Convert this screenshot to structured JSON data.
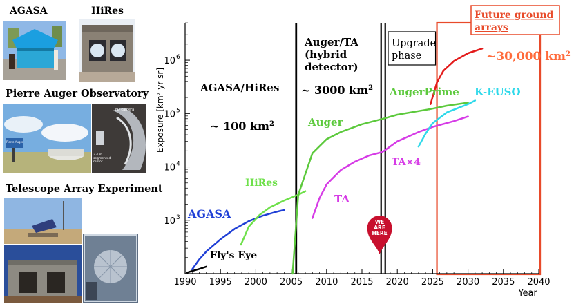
{
  "photos": {
    "agasa_title": "AGASA",
    "hires_title": "HiRes",
    "auger_title": "Pierre Auger Observatory",
    "ta_title": "Telescope Array Experiment",
    "auger_sign_text": "Pierre Auger",
    "auger_camera_text": "FD camera",
    "auger_mirror_text": "3.4 m segmented mirror"
  },
  "chart_data": {
    "type": "line",
    "xlabel": "Year",
    "ylabel": "Exposure [km² yr sr]",
    "xlim": [
      1990,
      2040
    ],
    "ylim_log10": [
      2.0,
      6.7
    ],
    "yscale": "log",
    "x_ticks": [
      1990,
      1995,
      2000,
      2005,
      2010,
      2015,
      2020,
      2025,
      2030,
      2035,
      2040
    ],
    "y_ticks": [
      {
        "value": 1000,
        "label": "10",
        "exp": "3"
      },
      {
        "value": 10000,
        "label": "10",
        "exp": "4"
      },
      {
        "value": 100000,
        "label": "10",
        "exp": "5"
      },
      {
        "value": 1000000,
        "label": "10",
        "exp": "6"
      }
    ],
    "series": [
      {
        "name": "Fly's Eye",
        "color": "#000000",
        "x": [
          1990.3,
          1991,
          1992,
          1993
        ],
        "y": [
          105,
          112,
          122,
          135
        ]
      },
      {
        "name": "AGASA",
        "color": "#1f3fd6",
        "x": [
          1991,
          1992,
          1993,
          1995,
          1997,
          1999,
          2001,
          2003,
          2004
        ],
        "y": [
          120,
          185,
          260,
          440,
          690,
          960,
          1220,
          1450,
          1560
        ]
      },
      {
        "name": "HiRes",
        "color": "#6ee04a",
        "x": [
          1997.9,
          1999,
          2000.5,
          2002,
          2004,
          2006,
          2007
        ],
        "y": [
          350,
          760,
          1250,
          1750,
          2350,
          3000,
          3500
        ]
      },
      {
        "name": "Auger",
        "color": "#5cc93c",
        "x": [
          2005.2,
          2006,
          2008,
          2010,
          2012,
          2015,
          2018,
          2020,
          2024.5
        ],
        "y": [
          100,
          3000,
          18000,
          33000,
          45000,
          63000,
          80000,
          95000,
          120000
        ]
      },
      {
        "name": "AugerPrime",
        "color": "#5cc93c",
        "x": [
          2024.5,
          2027,
          2030
        ],
        "y": [
          120000,
          140000,
          160000
        ]
      },
      {
        "name": "TA",
        "color": "#d63be6",
        "x": [
          2008,
          2009,
          2010,
          2012,
          2014,
          2016,
          2017.9
        ],
        "y": [
          1100,
          2600,
          4700,
          8700,
          12500,
          16300,
          19000
        ]
      },
      {
        "name": "TA×4",
        "color": "#d63be6",
        "x": [
          2017.9,
          2020,
          2023,
          2025,
          2028,
          2030
        ],
        "y": [
          19000,
          30000,
          45000,
          56000,
          72000,
          88000
        ]
      },
      {
        "name": "K-EUSO",
        "color": "#2fd9ea",
        "x": [
          2023,
          2024,
          2025,
          2027,
          2030,
          2031
        ],
        "y": [
          24000,
          42000,
          66000,
          105000,
          150000,
          175000
        ]
      },
      {
        "name": "Future ground arrays",
        "color": "#e31b1b",
        "x": [
          2024.7,
          2025.6,
          2026.5,
          2028,
          2030,
          2032
        ],
        "y": [
          150000,
          380000,
          630000,
          960000,
          1350000,
          1650000
        ]
      }
    ],
    "phase_lines": [
      {
        "x": 2005.7,
        "type": "single"
      },
      {
        "x": 2018.0,
        "type": "double"
      }
    ],
    "future_box": {
      "x_from": 2025.6,
      "x_to": 2040.2,
      "color": "#e84a2a"
    },
    "upgrade_box": {
      "x_from": 2019.1,
      "x_to": 2025.6
    },
    "annotations": {
      "agasa_hires_title": "AGASA/HiRes",
      "agasa_hires_area_prefix": "~ 100 km",
      "agasa_hires_area_sup": "2",
      "auger_ta_line1": "Auger/TA",
      "auger_ta_line2": "(hybrid",
      "auger_ta_line3": "detector)",
      "auger_ta_area_prefix": "~ 3000 km",
      "auger_ta_area_sup": "2",
      "upgrade_line1": "Upgrade",
      "upgrade_line2": "phase",
      "future_line1": "Future ground",
      "future_line2": "arrays",
      "future_area_prefix": "~30,000 km",
      "future_area_sup": "2",
      "pin_line1": "WE",
      "pin_line2": "ARE",
      "pin_line3": "HERE",
      "label_flys_eye": "Fly's Eye",
      "label_agasa": "AGASA",
      "label_hires": "HiRes",
      "label_auger": "Auger",
      "label_augerprime": "AugerPrime",
      "label_ta": "TA",
      "label_ta4": "TA×4",
      "label_keuso": "K-EUSO"
    }
  },
  "colors": {
    "agasa": "#1f3fd6",
    "hires": "#6ee04a",
    "auger": "#5cc93c",
    "ta": "#d63be6",
    "keuso": "#2fd9ea",
    "future": "#e31b1b",
    "future_box": "#e84a2a",
    "future_area": "#ff6a3a",
    "pin": "#c8102e"
  }
}
